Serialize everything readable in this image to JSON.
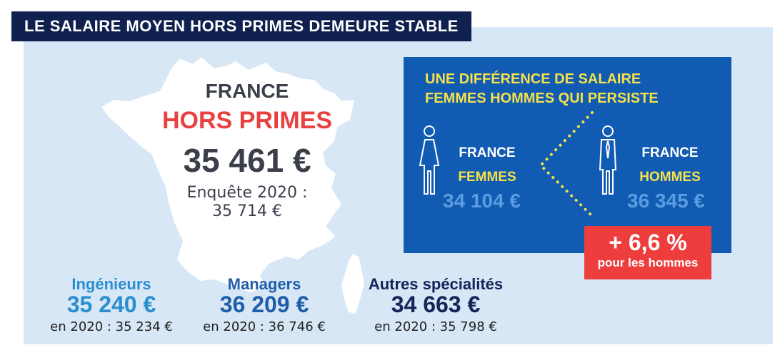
{
  "title": "LE SALAIRE MOYEN HORS PRIMES DEMEURE STABLE",
  "france": {
    "label": "FRANCE",
    "sublabel": "HORS PRIMES",
    "salary": "35 461 €",
    "survey_label": "Enquête 2020 :",
    "survey_value": "35 714 €"
  },
  "categories": [
    {
      "name": "Ingénieurs",
      "salary": "35 240 €",
      "previous": "en 2020 : 35 234 €"
    },
    {
      "name": "Managers",
      "salary": "36 209 €",
      "previous": "en 2020 : 36 746 €"
    },
    {
      "name": "Autres spécialités",
      "salary": "34 663 €",
      "previous": "en 2020 : 35 798 €"
    }
  ],
  "gender_gap": {
    "title_line1": "UNE DIFFÉRENCE DE SALAIRE",
    "title_line2": "FEMMES HOMMES QUI PERSISTE",
    "women": {
      "line1": "FRANCE",
      "line2": "FEMMES",
      "salary": "34 104 €"
    },
    "men": {
      "line1": "FRANCE",
      "line2": "HOMMES",
      "salary": "36 345 €"
    },
    "difference": "+ 6,6 %",
    "difference_note": "pour les hommes"
  },
  "colors": {
    "title_bg": "#10204f",
    "panel_bg": "#d8e7f5",
    "accent_red": "#e8413f",
    "box_blue": "#115bb3",
    "yellow": "#f5e14a",
    "light_blue_text": "#5a9de0",
    "engineers": "#2a8fd0",
    "managers": "#1f5ea8",
    "others": "#14255a"
  },
  "icons": [
    "france-map-icon",
    "corsica-map-icon",
    "woman-icon",
    "man-icon",
    "dotted-connector-icon"
  ]
}
